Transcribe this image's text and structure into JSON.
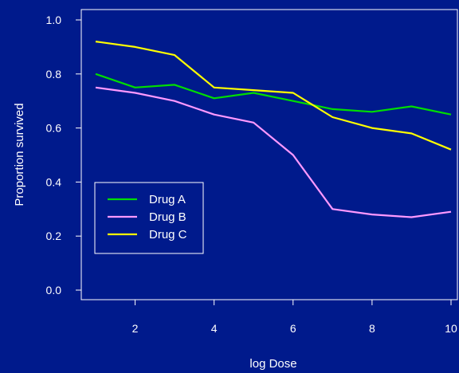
{
  "chart_data": {
    "type": "line",
    "xlabel": "log Dose",
    "ylabel": "Proportion survived",
    "x": [
      1,
      2,
      3,
      4,
      5,
      6,
      7,
      8,
      9,
      10
    ],
    "xlim": [
      1,
      10
    ],
    "ylim": [
      0,
      1
    ],
    "xticks": [
      2,
      4,
      6,
      8,
      10
    ],
    "yticks": [
      0.0,
      0.2,
      0.4,
      0.6,
      0.8,
      1.0
    ],
    "xtick_labels": [
      "2",
      "4",
      "6",
      "8",
      "10"
    ],
    "ytick_labels": [
      "0.0",
      "0.2",
      "0.4",
      "0.6",
      "0.8",
      "1.0"
    ],
    "grid": false,
    "legend_position": "bottom-left",
    "background_color": "#001a8c",
    "foreground_color": "#ffffff",
    "series": [
      {
        "name": "Drug A",
        "color": "#00dd00",
        "values": [
          0.8,
          0.75,
          0.76,
          0.71,
          0.73,
          0.7,
          0.67,
          0.66,
          0.68,
          0.65
        ]
      },
      {
        "name": "Drug B",
        "color": "#ff99ff",
        "values": [
          0.75,
          0.73,
          0.7,
          0.65,
          0.62,
          0.5,
          0.3,
          0.28,
          0.27,
          0.29
        ]
      },
      {
        "name": "Drug C",
        "color": "#ffff00",
        "values": [
          0.92,
          0.9,
          0.87,
          0.75,
          0.74,
          0.73,
          0.64,
          0.6,
          0.58,
          0.52
        ]
      }
    ]
  }
}
